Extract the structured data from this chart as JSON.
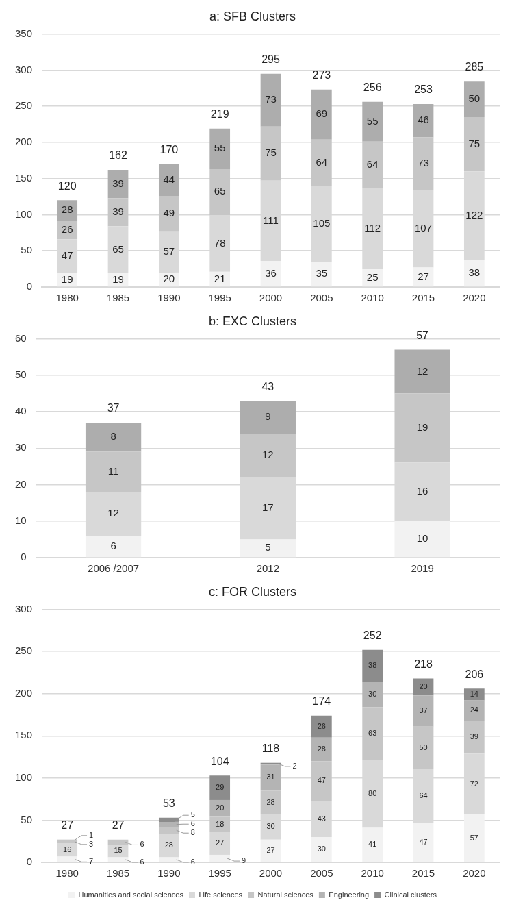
{
  "chart_data": [
    {
      "type": "bar",
      "title": "a: SFB Clusters",
      "stacked": true,
      "data_labels": true,
      "grid": "y",
      "legend": false,
      "categories": [
        "1980",
        "1985",
        "1990",
        "1995",
        "2000",
        "2005",
        "2010",
        "2015",
        "2020"
      ],
      "ylim": [
        0,
        350
      ],
      "yticks": [
        0,
        50,
        100,
        150,
        200,
        250,
        300,
        350
      ],
      "series": [
        {
          "color": "#f2f2f2",
          "values": [
            19,
            19,
            20,
            21,
            36,
            35,
            25,
            27,
            38
          ]
        },
        {
          "color": "#d9d9d9",
          "values": [
            47,
            65,
            57,
            78,
            111,
            105,
            112,
            107,
            122
          ]
        },
        {
          "color": "#c6c6c6",
          "values": [
            26,
            39,
            49,
            65,
            75,
            64,
            64,
            73,
            75
          ]
        },
        {
          "color": "#adadad",
          "values": [
            28,
            39,
            44,
            55,
            73,
            69,
            55,
            46,
            50
          ]
        }
      ],
      "totals": [
        "120",
        "162",
        "170",
        "219",
        "295",
        "273",
        "256",
        "253",
        "285"
      ]
    },
    {
      "type": "bar",
      "title": "b: EXC Clusters",
      "stacked": true,
      "data_labels": true,
      "grid": "y",
      "legend": false,
      "categories": [
        "2006 /2007",
        "2012",
        "2019"
      ],
      "ylim": [
        0,
        60
      ],
      "yticks": [
        0,
        10,
        20,
        30,
        40,
        50,
        60
      ],
      "series": [
        {
          "color": "#f2f2f2",
          "values": [
            6,
            5,
            10
          ]
        },
        {
          "color": "#d9d9d9",
          "values": [
            12,
            17,
            16
          ]
        },
        {
          "color": "#c6c6c6",
          "values": [
            11,
            12,
            19
          ]
        },
        {
          "color": "#adadad",
          "values": [
            8,
            9,
            12
          ]
        }
      ],
      "totals": [
        "37",
        "43",
        "57"
      ]
    },
    {
      "type": "bar",
      "title": "c: FOR Clusters",
      "stacked": true,
      "data_labels": true,
      "grid": "y",
      "legend": "bottom",
      "categories": [
        "1980",
        "1985",
        "1990",
        "1995",
        "2000",
        "2005",
        "2010",
        "2015",
        "2020"
      ],
      "ylim": [
        0,
        300
      ],
      "yticks": [
        0,
        50,
        100,
        150,
        200,
        250,
        300
      ],
      "series": [
        {
          "name": "Humanities and social sciences",
          "color": "#f2f2f2",
          "values": [
            7,
            6,
            6,
            9,
            27,
            30,
            41,
            47,
            57
          ]
        },
        {
          "name": "Life sciences",
          "color": "#d9d9d9",
          "values": [
            16,
            15,
            28,
            27,
            30,
            43,
            80,
            64,
            72
          ]
        },
        {
          "name": "Natural sciences",
          "color": "#c6c6c6",
          "values": [
            3,
            6,
            8,
            18,
            28,
            47,
            63,
            50,
            39
          ]
        },
        {
          "name": "Engineering",
          "color": "#b4b4b4",
          "values": [
            1,
            null,
            6,
            20,
            31,
            28,
            30,
            37,
            24
          ]
        },
        {
          "name": "Clinical clusters",
          "color": "#8c8c8c",
          "values": [
            null,
            null,
            5,
            29,
            2,
            26,
            38,
            20,
            14
          ]
        }
      ],
      "totals": [
        "27",
        "27",
        "53",
        "104",
        "118",
        "174",
        "252",
        "218",
        "206"
      ]
    }
  ]
}
